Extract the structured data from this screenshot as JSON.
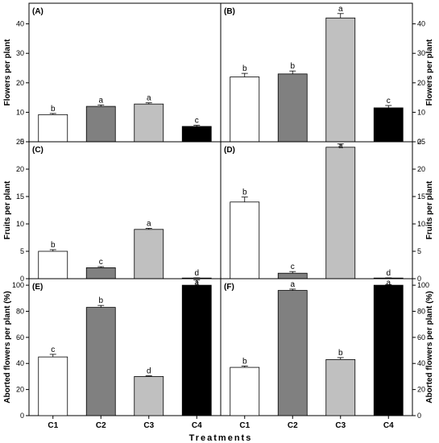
{
  "figure": {
    "xlabel": "Treatments",
    "categories": [
      "C1",
      "C2",
      "C3",
      "C4"
    ],
    "bar_colors": [
      "#ffffff",
      "#808080",
      "#c0c0c0",
      "#000000"
    ]
  },
  "chart_data": [
    {
      "type": "bar",
      "panel": "(A)",
      "ylabel": "Flowers per plant",
      "ylim": [
        0,
        47
      ],
      "yticks": [
        0,
        10,
        20,
        30,
        40
      ],
      "categories": [
        "C1",
        "C2",
        "C3",
        "C4"
      ],
      "values": [
        9.2,
        12.0,
        12.8,
        5.2
      ],
      "errors": [
        0.4,
        0.5,
        0.4,
        0.4
      ],
      "letters": [
        "b",
        "a",
        "a",
        "c"
      ],
      "y_axis_side": "left"
    },
    {
      "type": "bar",
      "panel": "(B)",
      "ylabel": "Flowers per plant",
      "ylim": [
        0,
        47
      ],
      "yticks": [
        0,
        10,
        20,
        30,
        40
      ],
      "categories": [
        "C1",
        "C2",
        "C3",
        "C4"
      ],
      "values": [
        22.0,
        23.0,
        42.0,
        11.5
      ],
      "errors": [
        1.2,
        1.0,
        1.5,
        0.8
      ],
      "letters": [
        "b",
        "b",
        "a",
        "c"
      ],
      "y_axis_side": "right"
    },
    {
      "type": "bar",
      "panel": "(C)",
      "ylabel": "Fruits per plant",
      "ylim": [
        0,
        25
      ],
      "yticks": [
        0,
        5,
        10,
        15,
        20,
        25
      ],
      "categories": [
        "C1",
        "C2",
        "C3",
        "C4"
      ],
      "values": [
        5.0,
        2.0,
        9.0,
        0.1
      ],
      "errors": [
        0.3,
        0.2,
        0.2,
        0.05
      ],
      "letters": [
        "b",
        "c",
        "a",
        "d"
      ],
      "y_axis_side": "left"
    },
    {
      "type": "bar",
      "panel": "(D)",
      "ylabel": "Fruits per plant",
      "ylim": [
        0,
        25
      ],
      "yticks": [
        0,
        5,
        10,
        15,
        20,
        25
      ],
      "categories": [
        "C1",
        "C2",
        "C3",
        "C4"
      ],
      "values": [
        14.0,
        1.0,
        24.0,
        0.1
      ],
      "errors": [
        0.9,
        0.3,
        0.6,
        0.05
      ],
      "letters": [
        "b",
        "c",
        "a",
        "d"
      ],
      "y_axis_side": "right"
    },
    {
      "type": "bar",
      "panel": "(E)",
      "ylabel": "Aborted flowers per plant (%)",
      "ylim": [
        0,
        105
      ],
      "yticks": [
        0,
        20,
        40,
        60,
        80,
        100
      ],
      "categories": [
        "C1",
        "C2",
        "C3",
        "C4"
      ],
      "values": [
        45,
        83,
        30,
        100
      ],
      "errors": [
        2.0,
        1.5,
        0.5,
        4.0
      ],
      "letters": [
        "c",
        "b",
        "d",
        "a"
      ],
      "y_axis_side": "left"
    },
    {
      "type": "bar",
      "panel": "(F)",
      "ylabel": "Aborted flowers per plant (%)",
      "ylim": [
        0,
        105
      ],
      "yticks": [
        0,
        20,
        40,
        60,
        80,
        100
      ],
      "categories": [
        "C1",
        "C2",
        "C3",
        "C4"
      ],
      "values": [
        37,
        96,
        43,
        100
      ],
      "errors": [
        1.0,
        1.0,
        1.5,
        0.5
      ],
      "letters": [
        "b",
        "a",
        "b",
        "a"
      ],
      "y_axis_side": "right"
    }
  ]
}
